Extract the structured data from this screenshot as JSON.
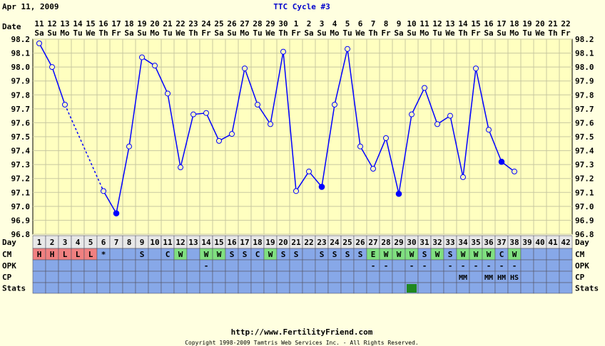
{
  "header": {
    "date": "Apr 11, 2009",
    "title": "TTC Cycle #3"
  },
  "row_labels": {
    "date": "Date",
    "day": "Day",
    "cm": "CM",
    "opk": "OPK",
    "cp": "CP",
    "stats": "Stats"
  },
  "footer": {
    "url": "http://www.FertilityFriend.com",
    "copyright": "Copyright 1998-2009 Tamtris Web Services Inc. - All Rights Reserved."
  },
  "colors": {
    "background": "#ffffe0",
    "plot": "#ffffc0",
    "line": "#0000ff",
    "grid": "#c8c8a0",
    "row_blue": "#87a8e8",
    "cm_red": "#f08080",
    "cm_green": "#80e080",
    "stats_green": "#208820",
    "title": "#0000cc"
  },
  "chart_data": {
    "type": "line",
    "ylim": [
      96.8,
      98.2
    ],
    "yticks": [
      "96.8",
      "96.9",
      "97.0",
      "97.1",
      "97.2",
      "97.3",
      "97.4",
      "97.5",
      "97.6",
      "97.7",
      "97.8",
      "97.9",
      "98.0",
      "98.1",
      "98.2"
    ],
    "date_numbers": [
      "11",
      "12",
      "13",
      "14",
      "15",
      "16",
      "17",
      "18",
      "19",
      "20",
      "21",
      "22",
      "23",
      "24",
      "25",
      "26",
      "27",
      "28",
      "29",
      "30",
      "1",
      "2",
      "3",
      "4",
      "5",
      "6",
      "7",
      "8",
      "9",
      "10",
      "11",
      "12",
      "13",
      "14",
      "15",
      "16",
      "17",
      "18",
      "19",
      "20",
      "21",
      "22"
    ],
    "weekdays": [
      "Sa",
      "Su",
      "Mo",
      "Tu",
      "We",
      "Th",
      "Fr",
      "Sa",
      "Su",
      "Mo",
      "Tu",
      "We",
      "Th",
      "Fr",
      "Sa",
      "Su",
      "Mo",
      "Tu",
      "We",
      "Th",
      "Fr",
      "Sa",
      "Su",
      "Mo",
      "Tu",
      "We",
      "Th",
      "Fr",
      "Sa",
      "Su",
      "Mo",
      "Tu",
      "We",
      "Th",
      "Fr",
      "Sa",
      "Su",
      "Mo",
      "Tu",
      "We",
      "Th",
      "Fr"
    ],
    "cycle_days": [
      "1",
      "2",
      "3",
      "4",
      "5",
      "6",
      "7",
      "8",
      "9",
      "10",
      "11",
      "12",
      "13",
      "14",
      "15",
      "16",
      "17",
      "18",
      "19",
      "20",
      "21",
      "22",
      "23",
      "24",
      "25",
      "26",
      "27",
      "28",
      "29",
      "30",
      "31",
      "32",
      "33",
      "34",
      "35",
      "36",
      "37",
      "38",
      "39",
      "40",
      "41",
      "42"
    ],
    "temps": [
      98.17,
      98.0,
      97.73,
      null,
      null,
      97.11,
      96.95,
      97.43,
      98.07,
      98.01,
      97.81,
      97.28,
      97.66,
      97.67,
      97.47,
      97.52,
      97.99,
      97.73,
      97.59,
      98.11,
      97.11,
      97.25,
      97.14,
      97.73,
      98.13,
      97.43,
      97.27,
      97.49,
      97.09,
      97.66,
      97.85,
      97.59,
      97.65,
      97.21,
      97.99,
      97.55,
      97.32,
      97.25,
      null,
      null,
      null,
      null
    ],
    "filled_points": [
      7,
      23,
      29,
      37
    ],
    "dashed_segment": [
      3,
      6
    ],
    "cm": [
      "H",
      "H",
      "L",
      "L",
      "L",
      "*",
      "",
      "",
      "S",
      "",
      "C",
      "W",
      "",
      "W",
      "W",
      "S",
      "S",
      "C",
      "W",
      "S",
      "S",
      "",
      "S",
      "S",
      "S",
      "S",
      "E",
      "W",
      "W",
      "W",
      "S",
      "W",
      "S",
      "W",
      "W",
      "W",
      "C",
      "W",
      "",
      "",
      "",
      ""
    ],
    "cm_colors": [
      "red",
      "red",
      "red",
      "red",
      "red",
      "",
      "",
      "",
      "",
      "",
      "",
      "green",
      "",
      "green",
      "green",
      "",
      "",
      "",
      "green",
      "",
      "",
      "",
      "",
      "",
      "",
      "",
      "green",
      "green",
      "green",
      "green",
      "",
      "green",
      "",
      "green",
      "green",
      "green",
      "",
      "green",
      "",
      "",
      "",
      ""
    ],
    "opk": [
      "",
      "",
      "",
      "",
      "",
      "",
      "",
      "",
      "",
      "",
      "",
      "",
      "",
      "-",
      "",
      "",
      "",
      "",
      "",
      "",
      "",
      "",
      "",
      "",
      "",
      "",
      "-",
      "-",
      "",
      "-",
      "-",
      "",
      "-",
      "-",
      "-",
      "-",
      "-",
      "-",
      "",
      "",
      "",
      ""
    ],
    "cp": [
      "",
      "",
      "",
      "",
      "",
      "",
      "",
      "",
      "",
      "",
      "",
      "",
      "",
      "",
      "",
      "",
      "",
      "",
      "",
      "",
      "",
      "",
      "",
      "",
      "",
      "",
      "",
      "",
      "",
      "",
      "",
      "",
      "",
      "MM",
      "",
      "MM",
      "HM",
      "HS",
      "",
      "",
      "",
      ""
    ],
    "stats_marked_day": 30
  }
}
